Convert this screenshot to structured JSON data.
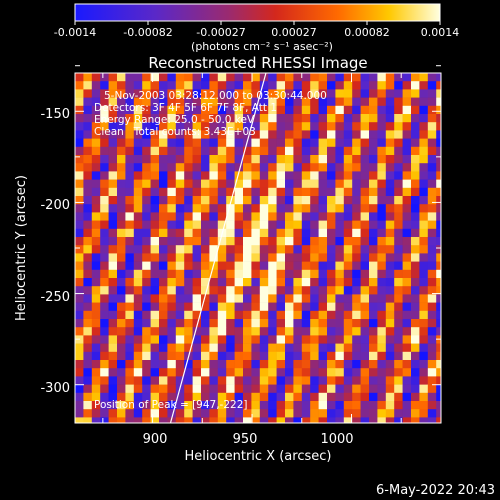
{
  "colorbar": {
    "ticks": [
      "-0.0014",
      "-0.00082",
      "-0.00027",
      "0.00027",
      "0.00082",
      "0.0014"
    ],
    "unit_label": "(photons cm⁻² s⁻¹ asec⁻²)",
    "min": -0.0014,
    "max": 0.0014
  },
  "title": "Reconstructed RHESSI Image",
  "annotations": {
    "time_range": "5-Nov-2003 03:28:12.000 to 03:30:44.000",
    "detectors": "Detectors: 3F 4F 5F 6F 7F 8F, Att 1",
    "energy": "Energy Range: 25.0 - 50.0 keV",
    "clean": "Clean   Total counts: 3.43E+03",
    "peak": "Position of Peak = [947,-222]"
  },
  "axes": {
    "xlabel": "Heliocentric X (arcsec)",
    "ylabel": "Heliocentric Y (arcsec)",
    "xticks": [
      900,
      950,
      1000
    ],
    "yticks": [
      -150,
      -200,
      -250,
      -300
    ],
    "xlim": [
      861,
      1045
    ],
    "ylim": [
      -321,
      -129
    ]
  },
  "limb_line": {
    "x0": 909,
    "y0": -321,
    "x1": 957,
    "y1": -129
  },
  "timestamp": "6-May-2022 20:43"
}
